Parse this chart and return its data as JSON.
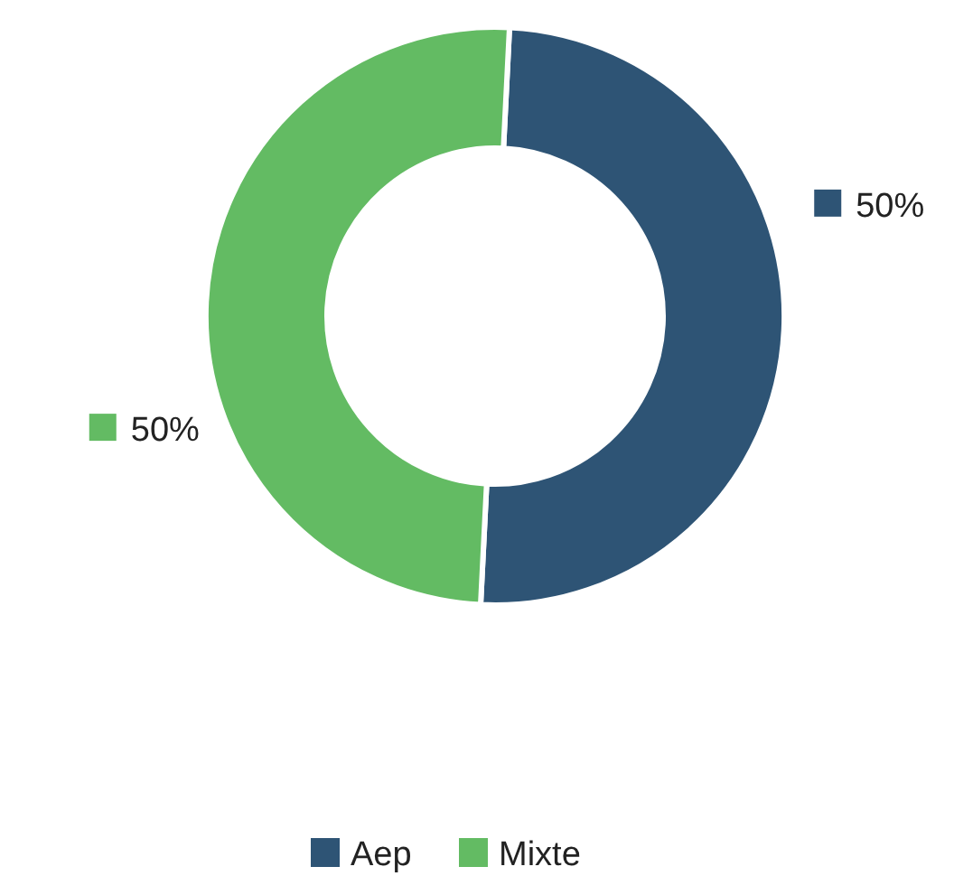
{
  "chart_data": {
    "type": "donut",
    "categories": [
      "Aep",
      "Mixte"
    ],
    "values": [
      50,
      50
    ],
    "colors": [
      "#2e5475",
      "#63bb63"
    ],
    "value_labels": [
      "50%",
      "50%"
    ],
    "legend": "bottom"
  }
}
